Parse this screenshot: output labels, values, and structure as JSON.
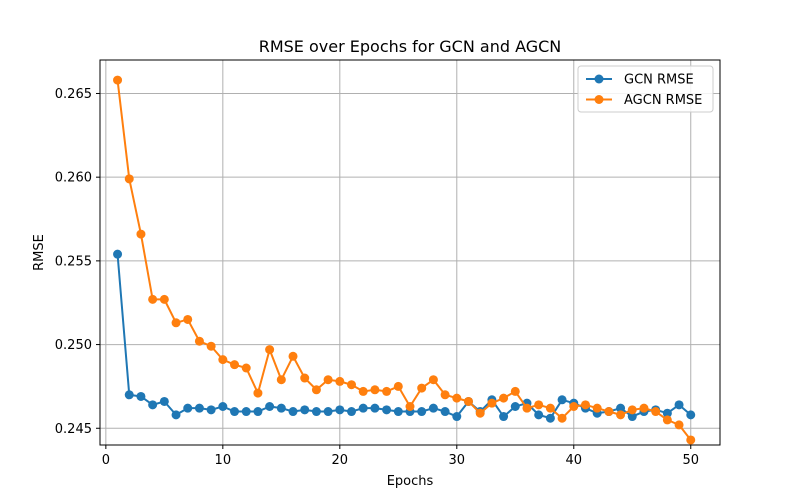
{
  "chart_data": {
    "type": "line",
    "title": "RMSE over Epochs for GCN and AGCN",
    "xlabel": "Epochs",
    "ylabel": "RMSE",
    "xlim": [
      -0.5,
      52.5
    ],
    "ylim": [
      0.244,
      0.267
    ],
    "xticks": [
      0,
      10,
      20,
      30,
      40,
      50
    ],
    "yticks": [
      0.245,
      0.25,
      0.255,
      0.26,
      0.265
    ],
    "grid": true,
    "legend_position": "top-right",
    "x": [
      1,
      2,
      3,
      4,
      5,
      6,
      7,
      8,
      9,
      10,
      11,
      12,
      13,
      14,
      15,
      16,
      17,
      18,
      19,
      20,
      21,
      22,
      23,
      24,
      25,
      26,
      27,
      28,
      29,
      30,
      31,
      32,
      33,
      34,
      35,
      36,
      37,
      38,
      39,
      40,
      41,
      42,
      43,
      44,
      45,
      46,
      47,
      48,
      49,
      50
    ],
    "series": [
      {
        "name": "GCN RMSE",
        "color": "#1f77b4",
        "values": [
          0.2554,
          0.247,
          0.2469,
          0.2464,
          0.2466,
          0.2458,
          0.2462,
          0.2462,
          0.2461,
          0.2463,
          0.246,
          0.246,
          0.246,
          0.2463,
          0.2462,
          0.246,
          0.2461,
          0.246,
          0.246,
          0.2461,
          0.246,
          0.2462,
          0.2462,
          0.2461,
          0.246,
          0.246,
          0.246,
          0.2462,
          0.246,
          0.2457,
          0.2466,
          0.246,
          0.2467,
          0.2457,
          0.2463,
          0.2465,
          0.2458,
          0.2456,
          0.2467,
          0.2465,
          0.2462,
          0.2459,
          0.246,
          0.2462,
          0.2457,
          0.246,
          0.2461,
          0.2459,
          0.2464,
          0.2458
        ]
      },
      {
        "name": "AGCN RMSE",
        "color": "#ff7f0e",
        "values": [
          0.2658,
          0.2599,
          0.2566,
          0.2527,
          0.2527,
          0.2513,
          0.2515,
          0.2502,
          0.2499,
          0.2491,
          0.2488,
          0.2486,
          0.2471,
          0.2497,
          0.2479,
          0.2493,
          0.248,
          0.2473,
          0.2479,
          0.2478,
          0.2476,
          0.2472,
          0.2473,
          0.2472,
          0.2475,
          0.2463,
          0.2474,
          0.2479,
          0.247,
          0.2468,
          0.2466,
          0.2459,
          0.2465,
          0.2468,
          0.2472,
          0.2462,
          0.2464,
          0.2462,
          0.2456,
          0.2463,
          0.2464,
          0.2462,
          0.246,
          0.2458,
          0.2461,
          0.2462,
          0.246,
          0.2455,
          0.2452,
          0.2443
        ]
      }
    ]
  }
}
